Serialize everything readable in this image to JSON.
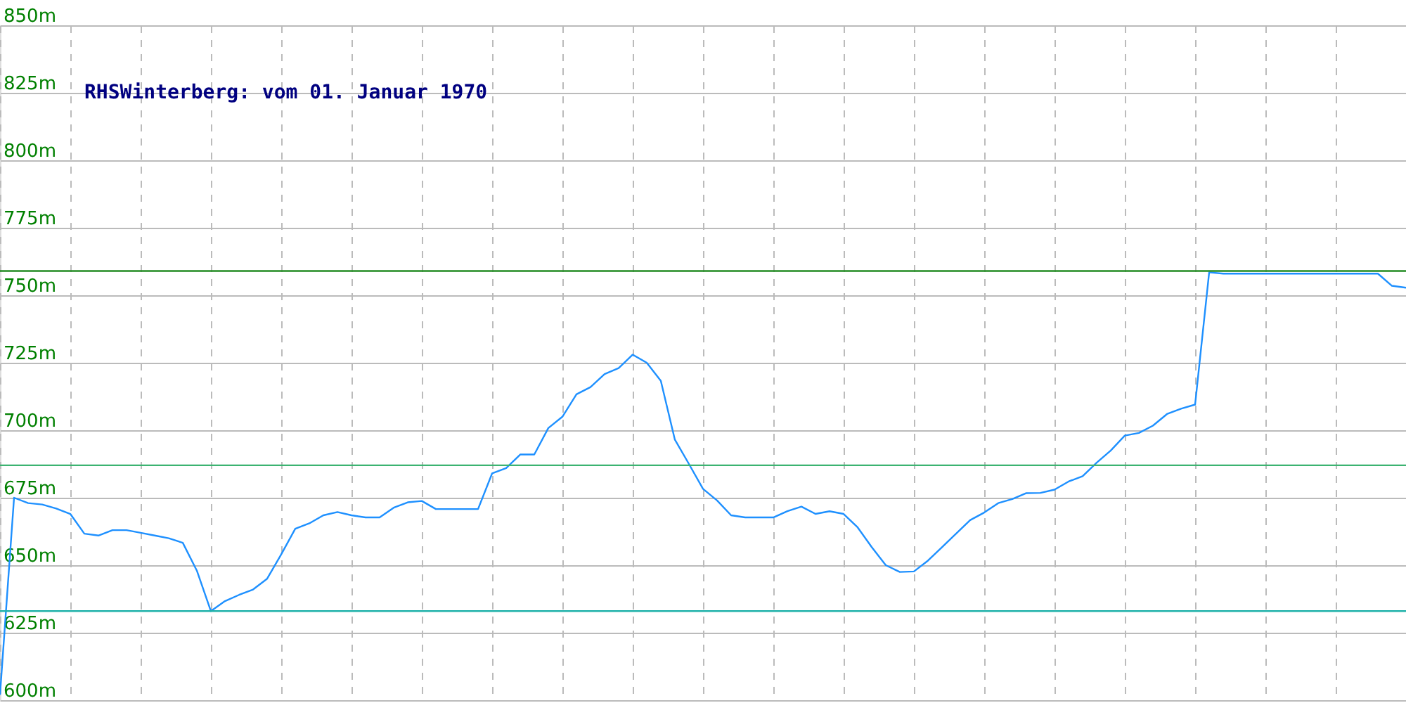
{
  "chart_data": {
    "type": "line",
    "title": "RHSWinterberg: vom 01. Januar 1970",
    "categories": [
      null,
      null,
      null,
      null,
      null,
      null,
      null,
      null,
      null,
      null,
      null,
      null,
      null,
      null,
      null,
      null,
      null,
      null,
      null,
      null,
      null,
      null,
      null,
      null,
      null,
      null,
      null,
      null,
      null,
      null,
      null,
      null,
      null,
      null,
      null,
      null,
      null,
      null,
      null,
      null,
      null,
      null,
      null,
      null,
      null,
      null,
      null,
      null,
      null,
      null,
      null,
      null,
      null,
      null,
      null,
      null,
      null,
      null,
      null,
      null,
      null,
      null,
      null,
      null,
      null,
      null,
      null,
      null,
      null,
      null,
      null,
      null,
      null,
      null,
      null,
      null,
      null,
      null,
      null,
      null,
      null,
      null,
      null,
      null,
      null,
      null,
      null,
      null,
      null,
      null,
      null,
      null,
      null,
      null,
      null,
      null,
      null,
      null,
      null,
      null,
      null
    ],
    "series": [
      {
        "color": "#1e90ff",
        "values": [
          602,
          675,
          673,
          672.5,
          671,
          669,
          661.7,
          661,
          663,
          663,
          662,
          661,
          660,
          658.3,
          648,
          633,
          636.7,
          639,
          641,
          645,
          654,
          663.5,
          665.5,
          668.5,
          669.7,
          668.5,
          667.7,
          667.7,
          671.3,
          673.3,
          673.8,
          670.8,
          670.8,
          670.8,
          670.8,
          684,
          686,
          691,
          691,
          700.8,
          705,
          713.3,
          716,
          720.8,
          723,
          728,
          725,
          718.3,
          696.5,
          687.5,
          678.3,
          674,
          668.5,
          667.7,
          667.7,
          667.7,
          670,
          671.7,
          669,
          670,
          669,
          664,
          656.7,
          650,
          647.5,
          647.7,
          651.7,
          656.7,
          661.7,
          666.7,
          669.5,
          673,
          674.5,
          676.7,
          676.8,
          678,
          681,
          683,
          688,
          692.5,
          698,
          699,
          701.7,
          706,
          708,
          709.5,
          758.5,
          758,
          758,
          758,
          758,
          758,
          758,
          758,
          758,
          758,
          758,
          758,
          758,
          753.5,
          752.8
        ]
      }
    ],
    "ylim": [
      600,
      850
    ],
    "yticks": [
      {
        "value": 600,
        "label": "600m"
      },
      {
        "value": 625,
        "label": "625m"
      },
      {
        "value": 650,
        "label": "650m"
      },
      {
        "value": 675,
        "label": "675m"
      },
      {
        "value": 700,
        "label": "700m"
      },
      {
        "value": 725,
        "label": "725m"
      },
      {
        "value": 750,
        "label": "750m"
      },
      {
        "value": 775,
        "label": "775m"
      },
      {
        "value": 800,
        "label": "800m"
      },
      {
        "value": 825,
        "label": "825m"
      },
      {
        "value": 850,
        "label": "850m"
      }
    ],
    "grid": true,
    "tick_labels": "y",
    "line_style": "solid",
    "marker": "none",
    "ref_lines": [
      {
        "axis": "y",
        "value": 759,
        "color": "#228b22"
      },
      {
        "axis": "y",
        "value": 687,
        "color": "#3cb371"
      },
      {
        "axis": "y",
        "value": 633,
        "color": "#20b2aa"
      }
    ]
  }
}
